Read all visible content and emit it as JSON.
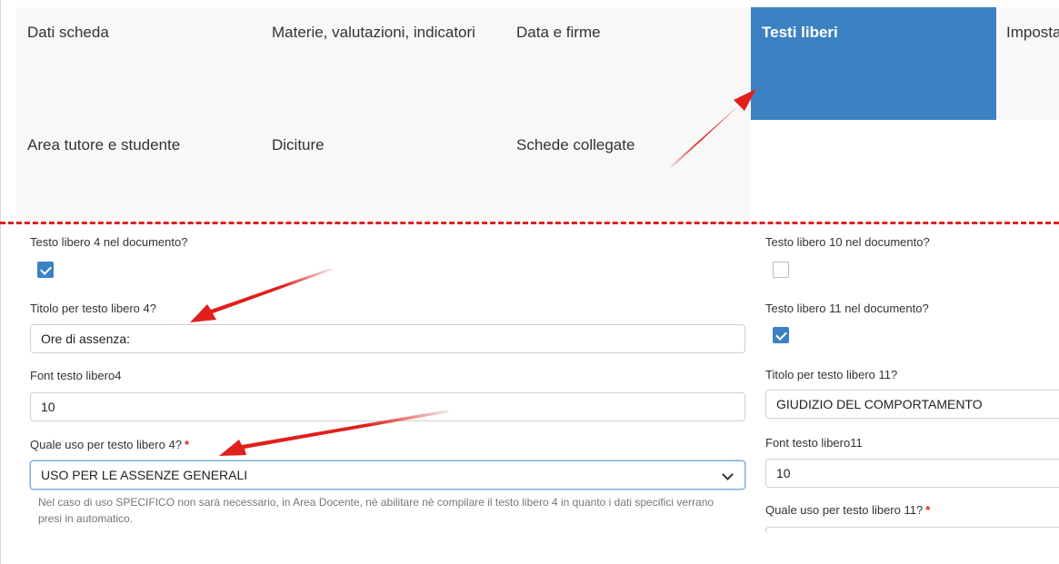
{
  "tabs": [
    {
      "label": "Dati scheda",
      "active": false
    },
    {
      "label": "Materie, valutazioni, indicatori",
      "active": false
    },
    {
      "label": "Data e firme",
      "active": false
    },
    {
      "label": "Testi liberi",
      "active": true
    },
    {
      "label": "Impostazioni",
      "active": false
    },
    {
      "label": "Area tutore e studente",
      "active": false
    },
    {
      "label": "Diciture",
      "active": false
    },
    {
      "label": "Schede collegate",
      "active": false
    }
  ],
  "left_column": {
    "testo4_label": "Testo libero 4 nel documento?",
    "testo4_checked": true,
    "titolo4_label": "Titolo per testo libero 4?",
    "titolo4_value": "Ore di assenza:",
    "font4_label": "Font testo libero4",
    "font4_value": "10",
    "uso4_label": "Quale uso per testo libero 4?",
    "uso4_required": "*",
    "uso4_value": "USO PER LE ASSENZE GENERALI",
    "uso4_help": "Nel caso di uso SPECIFICO non sarà necessario, in Area Docente, nè abilitare nè compilare il testo libero 4 in quanto i dati specifici verrano presi in automatico."
  },
  "right_column": {
    "testo10_label": "Testo libero 10 nel documento?",
    "testo10_checked": false,
    "testo11_label": "Testo libero 11 nel documento?",
    "testo11_checked": true,
    "titolo11_label": "Titolo per testo libero 11?",
    "titolo11_value": "GIUDIZIO DEL COMPORTAMENTO",
    "font11_label": "Font testo libero11",
    "font11_value": "10",
    "uso11_label": "Quale uso per testo libero 11?",
    "uso11_required": "*"
  },
  "colors": {
    "active_tab": "#3c82c3",
    "annotation_red": "#e0201c"
  }
}
